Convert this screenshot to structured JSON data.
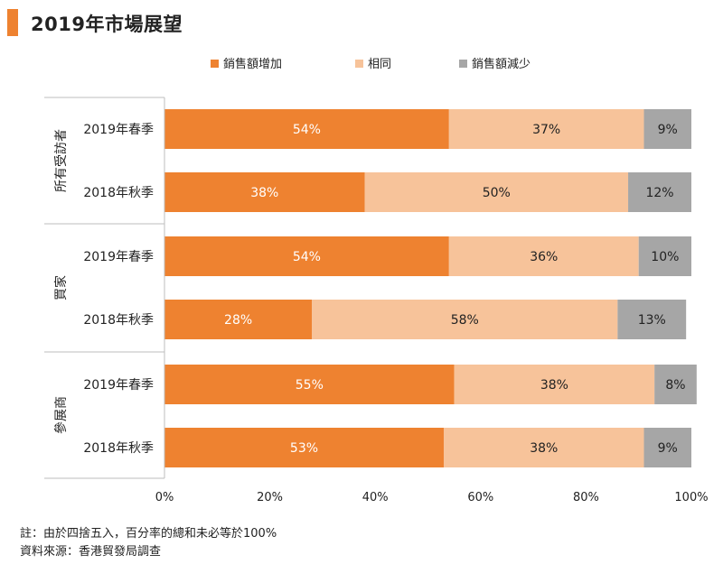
{
  "title": "2019年市場展望",
  "colors": {
    "accent": "#EE8230",
    "same": "#F7C39A",
    "decrease": "#A6A6A6"
  },
  "notes": {
    "line1": "註：由於四捨五入，百分率的總和未必等於100%",
    "line2": "資料來源：香港貿發局調查"
  },
  "chart_data": {
    "type": "bar",
    "orientation": "horizontal",
    "stacked": true,
    "legend_position": "top",
    "xlim": [
      0,
      100
    ],
    "x_ticks": [
      "0%",
      "20%",
      "40%",
      "60%",
      "80%",
      "100%"
    ],
    "groups": [
      {
        "label": "所有受訪者",
        "rows": [
          "2019年春季",
          "2018年秋季"
        ]
      },
      {
        "label": "買家",
        "rows": [
          "2019年春季",
          "2018年秋季"
        ]
      },
      {
        "label": "參展商",
        "rows": [
          "2019年春季",
          "2018年秋季"
        ]
      }
    ],
    "categories": [
      "2019年春季",
      "2018年秋季",
      "2019年春季",
      "2018年秋季",
      "2019年春季",
      "2018年秋季"
    ],
    "series": [
      {
        "name": "銷售額增加",
        "color": "#EE8230",
        "label_color": "#ffffff",
        "values": [
          54,
          38,
          54,
          28,
          55,
          53
        ]
      },
      {
        "name": "相同",
        "color": "#F7C39A",
        "label_color": "#222222",
        "values": [
          37,
          50,
          36,
          58,
          38,
          38
        ]
      },
      {
        "name": "銷售額減少",
        "color": "#A6A6A6",
        "label_color": "#222222",
        "values": [
          9,
          12,
          10,
          13,
          8,
          9
        ]
      }
    ]
  }
}
